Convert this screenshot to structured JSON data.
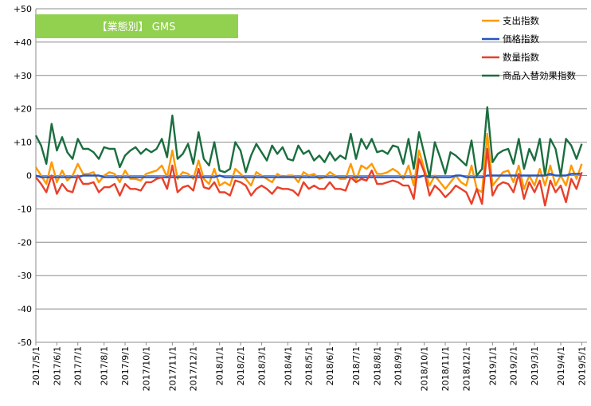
{
  "chart_data": {
    "type": "line",
    "title": "【業態別】 GMS",
    "colors": {
      "title_box": "#92D050",
      "gridline": "#8c8c8c",
      "axis": "#8c8c8c"
    },
    "ylim": [
      -50,
      50
    ],
    "y_ticks": [
      "+50",
      "+40",
      "+30",
      "+20",
      "+10",
      "0",
      "-10",
      "-20",
      "-30",
      "-40",
      "-50"
    ],
    "y_tick_values": [
      50,
      40,
      30,
      20,
      10,
      0,
      -10,
      -20,
      -30,
      -40,
      -50
    ],
    "x_tick_labels": [
      "2017/5/1",
      "2017/6/1",
      "2017/7/1",
      "2017/8/1",
      "2017/9/1",
      "2017/10/1",
      "2017/11/1",
      "2017/12/1",
      "2018/1/1",
      "2018/2/1",
      "2018/3/1",
      "2018/4/1",
      "2018/5/1",
      "2018/6/1",
      "2018/7/1",
      "2018/8/1",
      "2018/9/1",
      "2018/10/1",
      "2018/11/1",
      "2018/12/1",
      "2019/1/1",
      "2019/2/1",
      "2019/3/1",
      "2019/4/1",
      "2019/5/1"
    ],
    "x_tick_index": [
      0,
      4,
      8,
      13,
      17,
      21,
      26,
      30,
      35,
      39,
      43,
      48,
      52,
      56,
      61,
      65,
      69,
      74,
      78,
      82,
      87,
      91,
      95,
      100,
      104
    ],
    "x_range": [
      0,
      105
    ],
    "legend_position": "top-right",
    "series": [
      {
        "name": "支出指数",
        "color": "#FF9900",
        "values": [
          2.5,
          0,
          -2.5,
          4,
          -2,
          1.5,
          -1.5,
          0,
          3.5,
          0.5,
          0.5,
          1,
          -2,
          0,
          1,
          0.5,
          -2,
          1.5,
          -1,
          -1,
          -1.5,
          0.5,
          1,
          1.5,
          3,
          -0.5,
          7.5,
          -1,
          1,
          0.5,
          -1,
          4.5,
          -1,
          -2.5,
          2,
          -3,
          -2,
          -3,
          2,
          0.5,
          -1,
          -3,
          1,
          0,
          -1,
          -2,
          0.5,
          -0.5,
          0,
          0,
          -2,
          1,
          0,
          0.5,
          -1,
          -0.5,
          1,
          0,
          -1,
          -1,
          3.5,
          -1.5,
          3,
          2,
          3.5,
          0.5,
          0.5,
          1,
          2,
          1,
          -1,
          3,
          -3,
          7.5,
          2,
          -3,
          0,
          -2,
          -4,
          -2,
          0,
          -2,
          -3,
          3,
          -4,
          -5,
          12.5,
          -3,
          -1,
          1,
          1.5,
          -2,
          3,
          -4,
          0,
          -3,
          2,
          -3,
          3,
          -3,
          0,
          -3,
          3,
          -1,
          3.5
        ]
      },
      {
        "name": "価格指数",
        "color": "#2255C4",
        "values": [
          0,
          -0.5,
          -0.5,
          -0.5,
          -0.5,
          -0.5,
          -0.5,
          -0.5,
          -0.5,
          0,
          0,
          0,
          0,
          -0.5,
          -0.5,
          -0.5,
          -0.5,
          -0.5,
          -0.5,
          -0.5,
          -0.5,
          -0.5,
          -0.5,
          -0.5,
          -0.5,
          -0.5,
          -0.5,
          -0.5,
          -0.5,
          -0.5,
          -0.5,
          -0.5,
          -0.5,
          -0.5,
          -0.5,
          0,
          -0.5,
          -0.5,
          -0.5,
          -0.5,
          -0.5,
          -0.5,
          -0.5,
          -0.5,
          -0.5,
          -0.5,
          -0.5,
          -0.5,
          -0.5,
          -0.5,
          -0.5,
          -0.5,
          -0.5,
          -0.5,
          -0.5,
          -0.5,
          -0.5,
          -0.5,
          -0.5,
          -0.5,
          -0.5,
          -0.5,
          -0.5,
          -0.5,
          -0.5,
          -0.5,
          -0.5,
          -0.5,
          -0.5,
          -0.5,
          -0.5,
          -0.5,
          -0.5,
          -0.5,
          0,
          -0.5,
          -0.5,
          -0.5,
          -0.5,
          -0.5,
          0,
          0,
          -0.5,
          -0.5,
          -0.5,
          -0.5,
          0,
          0,
          0,
          0,
          0,
          0,
          0,
          0,
          0,
          0,
          0,
          0,
          0.5,
          0,
          0,
          0,
          0.5,
          0.5,
          0.5
        ]
      },
      {
        "name": "数量指数",
        "color": "#E8402A",
        "values": [
          -0.5,
          -2.5,
          -5,
          0,
          -5.5,
          -2.5,
          -4.5,
          -5,
          0,
          -2.5,
          -2.5,
          -2,
          -5,
          -3.5,
          -3.5,
          -2.5,
          -6,
          -2.5,
          -4,
          -4,
          -4.5,
          -2,
          -2,
          -1,
          -0.5,
          -4,
          3,
          -5,
          -3.5,
          -3,
          -4.5,
          2,
          -3.5,
          -4,
          -2,
          -5,
          -5,
          -6,
          -1.5,
          -2,
          -3,
          -6,
          -4,
          -3,
          -4,
          -5.5,
          -3.5,
          -4,
          -4,
          -4.5,
          -6,
          -2,
          -4,
          -3,
          -4,
          -4,
          -2,
          -4,
          -4,
          -4.5,
          -0.5,
          -2,
          -1,
          -1.5,
          1.5,
          -2.5,
          -2.5,
          -2,
          -1.5,
          -2,
          -3,
          -3,
          -7,
          5,
          1,
          -6,
          -3,
          -4.5,
          -6.5,
          -5,
          -3,
          -4,
          -5,
          -8.5,
          -4,
          -8.5,
          8,
          -6,
          -3,
          -2,
          -2.5,
          -5,
          0.5,
          -7,
          -2,
          -5,
          -1.5,
          -9,
          -1.5,
          -5,
          -3,
          -8,
          -1,
          -4,
          1
        ]
      },
      {
        "name": "商品入替効果指数",
        "color": "#1B6E3F",
        "values": [
          12,
          9,
          3.5,
          15.5,
          7.5,
          11.5,
          7,
          5,
          11,
          8,
          8,
          7,
          5,
          8.5,
          8,
          8,
          2.5,
          6,
          7.5,
          8.5,
          6.5,
          8,
          7,
          8,
          11,
          5.5,
          18,
          5,
          6.5,
          9.5,
          3.5,
          13,
          5,
          3,
          10,
          1.5,
          1,
          2,
          10,
          7.5,
          1,
          6,
          9.5,
          7,
          4.5,
          9,
          6.5,
          8.5,
          5,
          4.5,
          9,
          6.5,
          7.5,
          4.5,
          6,
          4,
          7,
          4.5,
          6,
          5,
          12.5,
          5,
          11,
          8,
          11,
          7,
          7.5,
          6.5,
          9,
          8.5,
          3.5,
          11,
          2,
          13,
          6.5,
          -0.5,
          10,
          5.5,
          0.5,
          7,
          6,
          4.5,
          3,
          10.5,
          0,
          2,
          20.5,
          4,
          6.5,
          7.5,
          8,
          3.5,
          11,
          2,
          8,
          4.5,
          11,
          0,
          11,
          8,
          0,
          11,
          9,
          5,
          9.5
        ]
      }
    ]
  }
}
